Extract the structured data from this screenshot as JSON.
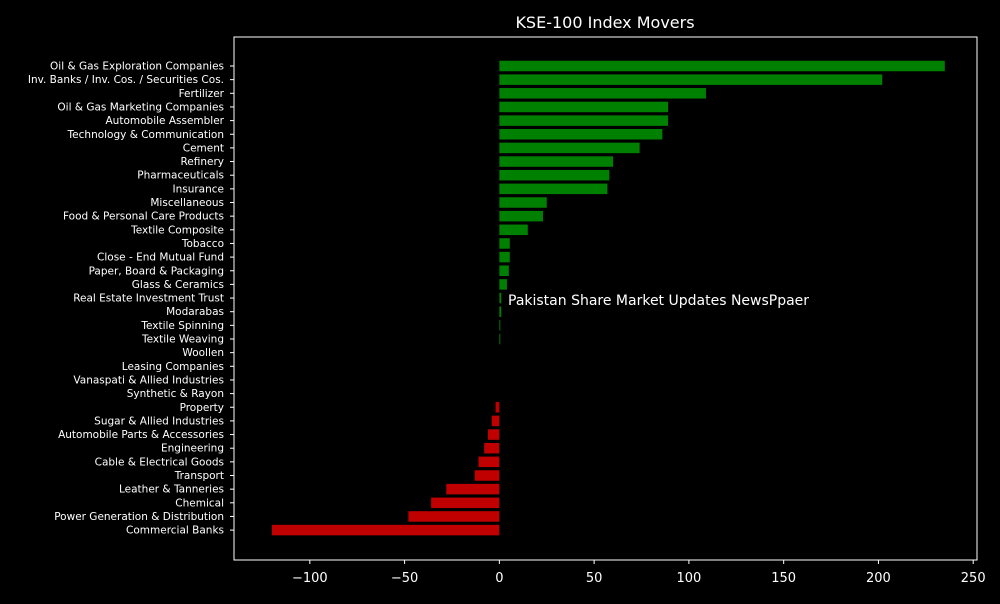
{
  "chart_data": {
    "type": "bar",
    "orientation": "horizontal",
    "title": "KSE-100 Index Movers",
    "xlabel": "",
    "ylabel": "",
    "xlim": [
      -140,
      252
    ],
    "xticks": [
      -100,
      -50,
      0,
      50,
      100,
      150,
      200,
      250
    ],
    "xtick_labels": [
      "−100",
      "−50",
      "0",
      "50",
      "100",
      "150",
      "200",
      "250"
    ],
    "grid": false,
    "colors": {
      "positive": "#008000",
      "negative": "#c00000",
      "background": "#000000",
      "foreground": "#ffffff"
    },
    "categories": [
      "Oil & Gas Exploration Companies",
      "Inv. Banks / Inv. Cos. / Securities Cos.",
      "Fertilizer",
      "Oil & Gas Marketing Companies",
      "Automobile Assembler",
      "Technology & Communication",
      "Cement",
      "Refinery",
      "Pharmaceuticals",
      "Insurance",
      "Miscellaneous",
      "Food & Personal Care Products",
      "Textile Composite",
      "Tobacco",
      "Close - End Mutual Fund",
      "Paper, Board & Packaging",
      "Glass & Ceramics",
      "Real Estate Investment Trust",
      "Modarabas",
      "Textile Spinning",
      "Textile Weaving",
      "Woollen",
      "Leasing Companies",
      "Vanaspati & Allied Industries",
      "Synthetic & Rayon",
      "Property",
      "Sugar & Allied Industries",
      "Automobile Parts & Accessories",
      "Engineering",
      "Cable & Electrical Goods",
      "Transport",
      "Leather & Tanneries",
      "Chemical",
      "Power Generation & Distribution",
      "Commercial Banks"
    ],
    "values": [
      235,
      202,
      109,
      89,
      89,
      86,
      74,
      60,
      58,
      57,
      25,
      23,
      15,
      5.5,
      5.5,
      5,
      4,
      1,
      1,
      0.5,
      0.5,
      0,
      0,
      0,
      0,
      -2,
      -4,
      -6,
      -8,
      -11,
      -13,
      -28,
      -36,
      -48,
      -120
    ],
    "annotation": "Pakistan Share Market Updates NewsPpaer"
  }
}
